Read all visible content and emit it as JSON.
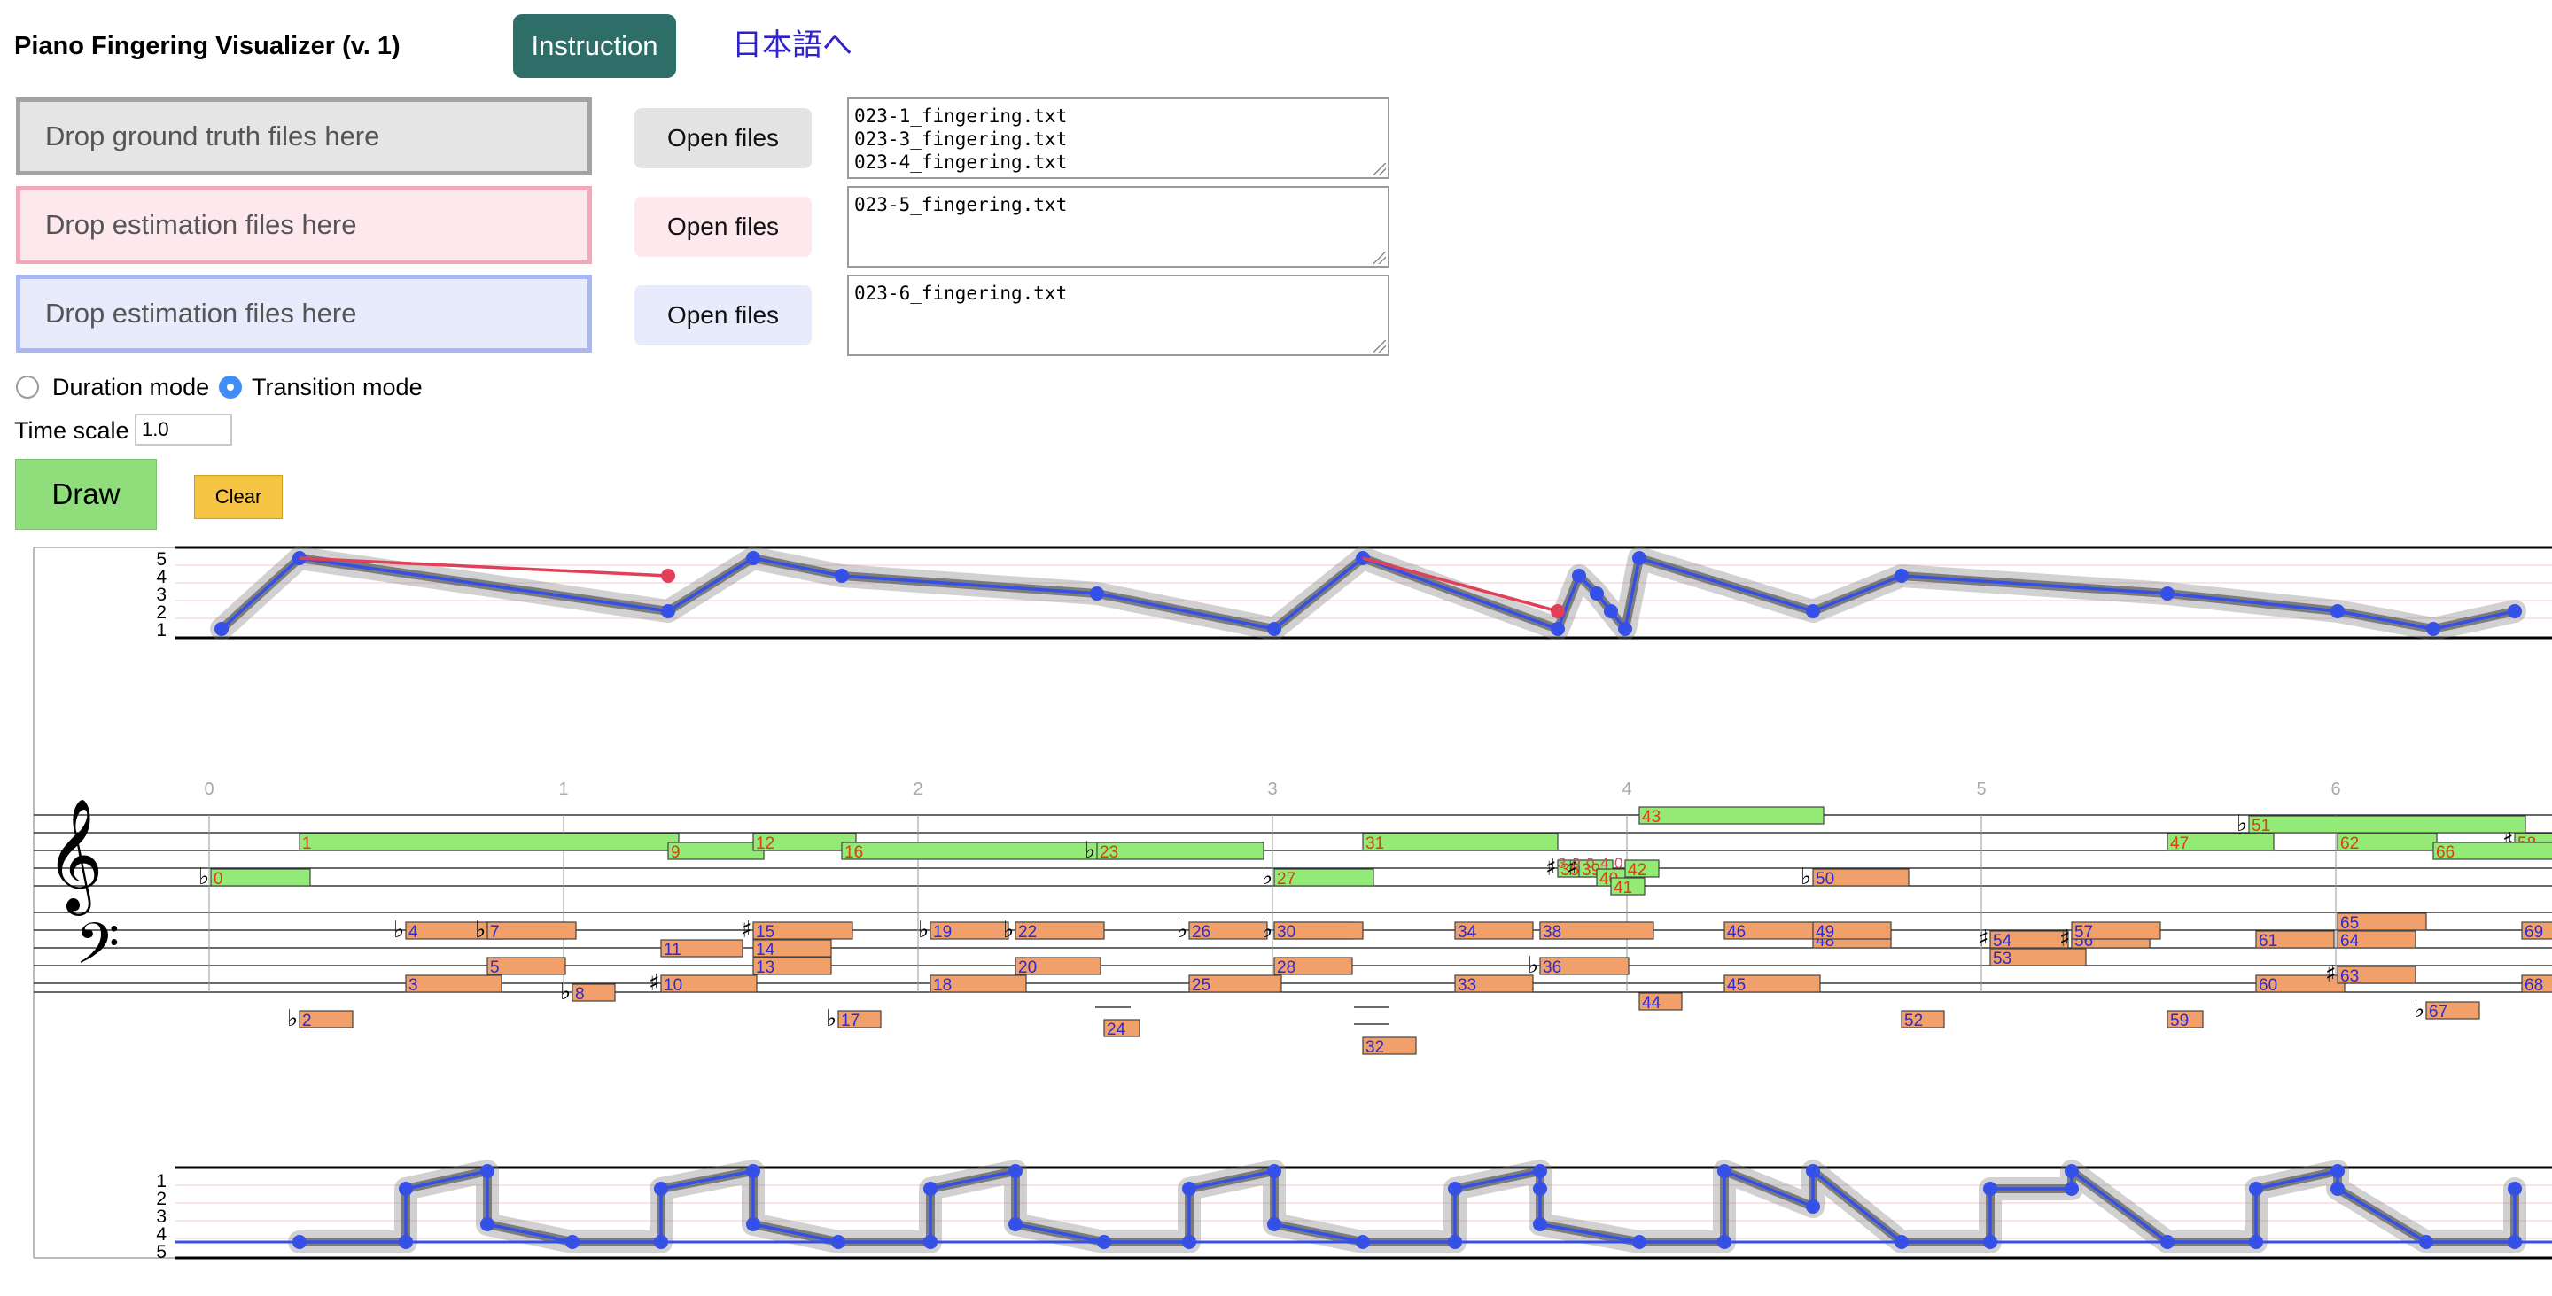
{
  "header": {
    "title": "Piano Fingering Visualizer (v. 1)",
    "instruction_label": "Instruction",
    "language_link": "日本語へ"
  },
  "inputs": {
    "ground_truth": {
      "drop_label": "Drop ground truth files here",
      "open_label": "Open files",
      "files": "023-1_fingering.txt\n023-3_fingering.txt\n023-4_fingering.txt"
    },
    "estimation_1": {
      "drop_label": "Drop estimation files here",
      "open_label": "Open files",
      "files": "023-5_fingering.txt"
    },
    "estimation_2": {
      "drop_label": "Drop estimation files here",
      "open_label": "Open files",
      "files": "023-6_fingering.txt"
    }
  },
  "modes": {
    "duration_label": "Duration mode",
    "transition_label": "Transition mode",
    "selected": "transition"
  },
  "time_scale": {
    "label": "Time scale",
    "value": "1.0"
  },
  "buttons": {
    "draw_label": "Draw",
    "clear_label": "Clear"
  },
  "visualization": {
    "finger_labels_top": [
      "5",
      "4",
      "3",
      "2",
      "1"
    ],
    "finger_labels_bottom": [
      "1",
      "2",
      "3",
      "4",
      "5"
    ],
    "time_markers": [
      "0",
      "1",
      "2",
      "3",
      "4",
      "5",
      "6"
    ],
    "colors": {
      "treble_note": "#93ea76",
      "bass_note": "#f0a06a",
      "estimate_line": "#3550e6",
      "estimate_mismatch": "#e0405a",
      "ground_truth": "#777777",
      "treble_number": "#d8400f",
      "bass_number": "#2a2ad6"
    },
    "right_hand_notes": [
      {
        "n": "0",
        "t": 0.0,
        "d": 0.28,
        "p": "Bb4",
        "acc": "flat"
      },
      {
        "n": "1",
        "t": 0.25,
        "d": 1.07,
        "p": "F5"
      },
      {
        "n": "9",
        "t": 1.29,
        "d": 0.27,
        "p": "E5"
      },
      {
        "n": "12",
        "t": 1.53,
        "d": 0.29,
        "p": "F5"
      },
      {
        "n": "16",
        "t": 1.78,
        "d": 0.78,
        "p": "E5"
      },
      {
        "n": "23",
        "t": 2.5,
        "d": 0.47,
        "p": "Eb5",
        "acc": "flat"
      },
      {
        "n": "27",
        "t": 3.0,
        "d": 0.28,
        "p": "Bb4",
        "acc": "flat"
      },
      {
        "n": "31",
        "t": 3.25,
        "d": 0.55,
        "p": "F5"
      },
      {
        "n": "35",
        "t": 3.8,
        "d": 0.09,
        "p": "C5",
        "acc": "sharp"
      },
      {
        "n": "39",
        "t": 3.86,
        "d": 0.08,
        "p": "C5",
        "acc": "sharp"
      },
      {
        "n": "40",
        "t": 3.91,
        "d": 0.06,
        "p": "Bb4"
      },
      {
        "n": "41",
        "t": 3.95,
        "d": 0.05,
        "p": "A4"
      },
      {
        "n": "42",
        "t": 3.99,
        "d": 0.06,
        "p": "C5"
      },
      {
        "n": "43",
        "t": 4.03,
        "d": 0.52,
        "p": "Bb5"
      },
      {
        "n": "47",
        "t": 5.52,
        "d": 0.3,
        "p": "F5"
      },
      {
        "n": "51",
        "t": 5.75,
        "d": 0.78,
        "p": "A5",
        "acc": "flat"
      },
      {
        "n": "58",
        "t": 6.5,
        "d": 0.5,
        "p": "F5",
        "acc": "sharp"
      },
      {
        "n": "62",
        "t": 6.0,
        "d": 0.28,
        "p": "F5"
      },
      {
        "n": "66",
        "t": 6.27,
        "d": 0.4,
        "p": "E5"
      }
    ],
    "left_hand_notes": [
      {
        "n": "2",
        "t": 0.25,
        "d": 0.15,
        "p": "E2",
        "acc": "flat"
      },
      {
        "n": "3",
        "t": 0.55,
        "d": 0.27,
        "p": "B2"
      },
      {
        "n": "4",
        "t": 0.55,
        "d": 0.27,
        "p": "A3",
        "acc": "flat"
      },
      {
        "n": "5",
        "t": 0.78,
        "d": 0.22,
        "p": "D3"
      },
      {
        "n": "6",
        "t": 0.78,
        "d": 0.22,
        "p": "A3",
        "acc": "flat"
      },
      {
        "n": "7",
        "t": 0.78,
        "d": 0.25,
        "p": "C4"
      },
      {
        "n": "8",
        "t": 1.02,
        "d": 0.12,
        "p": "A2",
        "acc": "flat"
      },
      {
        "n": "10",
        "t": 1.27,
        "d": 0.27,
        "p": "B2",
        "acc": "sharp"
      },
      {
        "n": "11",
        "t": 1.27,
        "d": 0.23,
        "p": "F3"
      },
      {
        "n": "13",
        "t": 1.53,
        "d": 0.22,
        "p": "D3"
      },
      {
        "n": "14",
        "t": 1.53,
        "d": 0.22,
        "p": "F3"
      },
      {
        "n": "15",
        "t": 1.53,
        "d": 0.28,
        "p": "C4",
        "acc": "sharp"
      },
      {
        "n": "17",
        "t": 1.77,
        "d": 0.12,
        "p": "E2",
        "acc": "flat"
      },
      {
        "n": "18",
        "t": 2.03,
        "d": 0.27,
        "p": "B2"
      },
      {
        "n": "19",
        "t": 2.03,
        "d": 0.22,
        "p": "A3",
        "acc": "flat"
      },
      {
        "n": "20",
        "t": 2.27,
        "d": 0.24,
        "p": "D3"
      },
      {
        "n": "21",
        "t": 2.27,
        "d": 0.24,
        "p": "A3",
        "acc": "flat"
      },
      {
        "n": "22",
        "t": 2.27,
        "d": 0.25,
        "p": "C4"
      },
      {
        "n": "24",
        "t": 2.52,
        "d": 0.1,
        "p": "D2"
      },
      {
        "n": "25",
        "t": 2.76,
        "d": 0.26,
        "p": "B2"
      },
      {
        "n": "26",
        "t": 2.76,
        "d": 0.22,
        "p": "A3",
        "acc": "flat"
      },
      {
        "n": "28",
        "t": 3.0,
        "d": 0.22,
        "p": "D3"
      },
      {
        "n": "29",
        "t": 3.0,
        "d": 0.22,
        "p": "A3",
        "acc": "flat"
      },
      {
        "n": "30",
        "t": 3.0,
        "d": 0.25,
        "p": "C4"
      },
      {
        "n": "32",
        "t": 3.25,
        "d": 0.15,
        "p": "B1"
      },
      {
        "n": "33",
        "t": 3.51,
        "d": 0.22,
        "p": "B2"
      },
      {
        "n": "34",
        "t": 3.51,
        "d": 0.22,
        "p": "A3"
      },
      {
        "n": "36",
        "t": 3.75,
        "d": 0.25,
        "p": "D3",
        "acc": "flat"
      },
      {
        "n": "37",
        "t": 3.75,
        "d": 0.25,
        "p": "A3"
      },
      {
        "n": "38",
        "t": 3.75,
        "d": 0.32,
        "p": "C4"
      },
      {
        "n": "44",
        "t": 4.03,
        "d": 0.12,
        "p": "G2"
      },
      {
        "n": "45",
        "t": 4.27,
        "d": 0.27,
        "p": "B2"
      },
      {
        "n": "46",
        "t": 4.27,
        "d": 0.27,
        "p": "A3"
      },
      {
        "n": "48",
        "t": 4.52,
        "d": 0.22,
        "p": "G3"
      },
      {
        "n": "49",
        "t": 4.52,
        "d": 0.22,
        "p": "A3"
      },
      {
        "n": "50",
        "t": 4.52,
        "d": 0.27,
        "p": "Bb4",
        "acc": "flat"
      },
      {
        "n": "52",
        "t": 4.77,
        "d": 0.12,
        "p": "E2"
      },
      {
        "n": "53",
        "t": 5.02,
        "d": 0.27,
        "p": "E3"
      },
      {
        "n": "54",
        "t": 5.02,
        "d": 0.22,
        "p": "G3",
        "acc": "sharp"
      },
      {
        "n": "55",
        "t": 5.25,
        "d": 0.22,
        "p": "G3",
        "acc": "sharp"
      },
      {
        "n": "56",
        "t": 5.25,
        "d": 0.22,
        "p": "G3"
      },
      {
        "n": "57",
        "t": 5.25,
        "d": 0.25,
        "p": "A3"
      },
      {
        "n": "59",
        "t": 5.52,
        "d": 0.1,
        "p": "E2"
      },
      {
        "n": "60",
        "t": 5.77,
        "d": 0.25,
        "p": "B2"
      },
      {
        "n": "61",
        "t": 5.77,
        "d": 0.22,
        "p": "G3"
      },
      {
        "n": "63",
        "t": 6.0,
        "d": 0.22,
        "p": "C3",
        "acc": "sharp"
      },
      {
        "n": "64",
        "t": 6.0,
        "d": 0.22,
        "p": "G3"
      },
      {
        "n": "65",
        "t": 6.0,
        "d": 0.25,
        "p": "B3"
      },
      {
        "n": "67",
        "t": 6.25,
        "d": 0.15,
        "p": "F2",
        "acc": "flat"
      },
      {
        "n": "68",
        "t": 6.52,
        "d": 0.1,
        "p": "B2"
      },
      {
        "n": "69",
        "t": 6.52,
        "d": 0.1,
        "p": "A3"
      }
    ],
    "overlay_digits": [
      "3",
      "0",
      "0",
      "4",
      "0"
    ],
    "right_hand_fingers": {
      "estimate": [
        [
          0.03,
          1
        ],
        [
          0.25,
          5
        ],
        [
          1.29,
          2
        ],
        [
          1.53,
          5
        ],
        [
          1.78,
          4
        ],
        [
          2.5,
          3
        ],
        [
          3.0,
          1
        ],
        [
          3.25,
          5
        ],
        [
          3.8,
          1
        ],
        [
          3.86,
          4
        ],
        [
          3.91,
          3
        ],
        [
          3.95,
          2
        ],
        [
          3.99,
          1
        ],
        [
          4.03,
          5
        ],
        [
          4.52,
          2
        ],
        [
          4.77,
          4
        ],
        [
          5.52,
          3
        ],
        [
          6.0,
          2
        ],
        [
          6.27,
          1
        ],
        [
          6.5,
          2
        ]
      ],
      "mismatch_segments": [
        [
          0.25,
          5,
          1.29,
          4
        ],
        [
          3.25,
          5,
          3.8,
          2
        ]
      ]
    },
    "left_hand_fingers": {
      "estimate": [
        [
          0.25,
          5
        ],
        [
          0.55,
          5
        ],
        [
          0.55,
          2
        ],
        [
          0.78,
          1
        ],
        [
          0.78,
          4
        ],
        [
          1.02,
          5
        ],
        [
          1.27,
          5
        ],
        [
          1.27,
          2
        ],
        [
          1.53,
          1
        ],
        [
          1.53,
          4
        ],
        [
          1.77,
          5
        ],
        [
          2.03,
          5
        ],
        [
          2.03,
          2
        ],
        [
          2.27,
          1
        ],
        [
          2.27,
          4
        ],
        [
          2.52,
          5
        ],
        [
          2.76,
          5
        ],
        [
          2.76,
          2
        ],
        [
          3.0,
          1
        ],
        [
          3.0,
          4
        ],
        [
          3.25,
          5
        ],
        [
          3.51,
          5
        ],
        [
          3.51,
          2
        ],
        [
          3.75,
          1
        ],
        [
          3.75,
          2
        ],
        [
          3.75,
          4
        ],
        [
          4.03,
          5
        ],
        [
          4.27,
          5
        ],
        [
          4.27,
          1
        ],
        [
          4.52,
          3
        ],
        [
          4.52,
          1
        ],
        [
          4.77,
          5
        ],
        [
          5.02,
          5
        ],
        [
          5.02,
          2
        ],
        [
          5.25,
          2
        ],
        [
          5.25,
          1
        ],
        [
          5.52,
          5
        ],
        [
          5.77,
          5
        ],
        [
          5.77,
          2
        ],
        [
          6.0,
          1
        ],
        [
          6.0,
          2
        ],
        [
          6.25,
          5
        ],
        [
          6.5,
          5
        ],
        [
          6.5,
          2
        ]
      ]
    }
  }
}
